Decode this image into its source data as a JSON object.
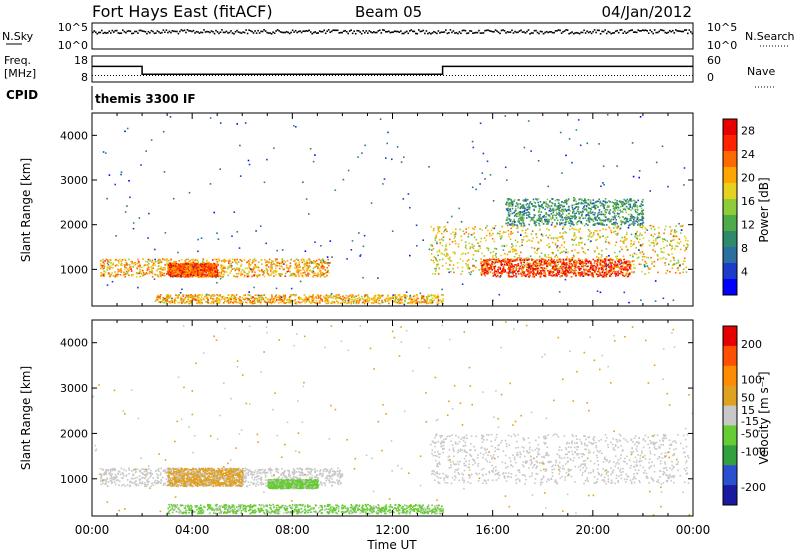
{
  "header": {
    "station": "Fort Hays East (fitACF)",
    "beam": "Beam 05",
    "date": "04/Jan/2012"
  },
  "noise_panel": {
    "left_label": "N.Sky",
    "left_ticks": [
      "10^5",
      "10^0"
    ],
    "right_label": "N.Search",
    "right_ticks": [
      "10^5",
      "10^0"
    ]
  },
  "freq_panel": {
    "left_label_top": "Freq.",
    "left_label_bottom": "[MHz]",
    "left_ticks": [
      "18",
      "8"
    ],
    "right_label": "Nave",
    "right_ticks": [
      "60",
      "0"
    ],
    "cpid_label": "CPID",
    "cpid_text": "themis 3300 IF",
    "freq_series": {
      "time_h": [
        0,
        2,
        2,
        14,
        14,
        24
      ],
      "mhz": [
        14,
        14,
        11,
        11,
        14,
        14
      ]
    },
    "nave_series": {
      "time_h": [
        0,
        24
      ],
      "value": [
        15,
        15
      ]
    }
  },
  "chart_data": [
    {
      "type": "heatmap",
      "title": "Power",
      "xlabel": "",
      "ylabel": "Slant Range [km]",
      "xlim": [
        0,
        24
      ],
      "ylim": [
        180,
        4500
      ],
      "ytick_values": [
        1000,
        2000,
        3000,
        4000
      ],
      "ytick_labels": [
        "1000",
        "2000",
        "3000",
        "4000"
      ],
      "colorbar": {
        "label": "Power [dB]",
        "range": [
          0,
          30
        ],
        "tick_values": [
          4,
          8,
          12,
          16,
          20,
          24,
          28
        ],
        "tick_labels": [
          "4",
          "8",
          "12",
          "16",
          "20",
          "24",
          "28"
        ],
        "colors": [
          "#0000ff",
          "#1a3cc8",
          "#2a6fa0",
          "#2f8a6c",
          "#4faa4a",
          "#8fcc3a",
          "#e6d21e",
          "#ffa500",
          "#ff6a00",
          "#ff2200",
          "#e60000"
        ]
      },
      "scatter_regions": [
        {
          "t0": 0.3,
          "t1": 9.5,
          "r0": 850,
          "r1": 1250,
          "value": 20
        },
        {
          "t0": 3.0,
          "t1": 5.0,
          "r0": 850,
          "r1": 1150,
          "value": 24
        },
        {
          "t0": 13.5,
          "t1": 23.8,
          "r0": 900,
          "r1": 2000,
          "value": 18
        },
        {
          "t0": 15.5,
          "t1": 21.5,
          "r0": 850,
          "r1": 1250,
          "value": 26
        },
        {
          "t0": 16.5,
          "t1": 22.0,
          "r0": 2000,
          "r1": 2600,
          "value": 10
        },
        {
          "t0": 2.5,
          "t1": 14.0,
          "r0": 250,
          "r1": 450,
          "value": 20
        },
        {
          "t0": 0.0,
          "t1": 24.0,
          "r0": 200,
          "r1": 4500,
          "value": 6
        }
      ]
    },
    {
      "type": "heatmap",
      "title": "Velocity",
      "xlabel": "Time UT",
      "ylabel": "Slant Range [km]",
      "xlim": [
        0,
        24
      ],
      "ylim": [
        180,
        4500
      ],
      "ytick_values": [
        1000,
        2000,
        3000,
        4000
      ],
      "ytick_labels": [
        "1000",
        "2000",
        "3000",
        "4000"
      ],
      "xtick_values": [
        0,
        4,
        8,
        12,
        16,
        20,
        24
      ],
      "xtick_labels": [
        "00:00",
        "04:00",
        "08:00",
        "12:00",
        "16:00",
        "20:00",
        "00:00"
      ],
      "colorbar": {
        "label": "Velocity [m s⁻¹]",
        "range": [
          -250,
          250
        ],
        "tick_values": [
          200,
          100,
          50,
          15,
          -15,
          -50,
          -100,
          -200
        ],
        "tick_labels": [
          "200",
          "100",
          "50",
          "15",
          "-15",
          "-50",
          "-100",
          "-200"
        ],
        "colors": [
          "#1a1aa0",
          "#2a4fd0",
          "#33a040",
          "#66cc33",
          "#c8c8c8",
          "#e0a020",
          "#ff8c00",
          "#ff5000",
          "#e60000"
        ]
      },
      "scatter_regions": [
        {
          "t0": 0.3,
          "t1": 10.0,
          "r0": 850,
          "r1": 1250,
          "value": 0
        },
        {
          "t0": 3.0,
          "t1": 6.0,
          "r0": 850,
          "r1": 1250,
          "value": 40
        },
        {
          "t0": 13.5,
          "t1": 23.8,
          "r0": 900,
          "r1": 2000,
          "value": 0
        },
        {
          "t0": 7.0,
          "t1": 9.0,
          "r0": 800,
          "r1": 1000,
          "value": -40
        },
        {
          "t0": 3.0,
          "t1": 14.0,
          "r0": 250,
          "r1": 450,
          "value": -40
        },
        {
          "t0": 0.0,
          "t1": 24.0,
          "r0": 200,
          "r1": 4500,
          "value": 30
        }
      ]
    }
  ]
}
